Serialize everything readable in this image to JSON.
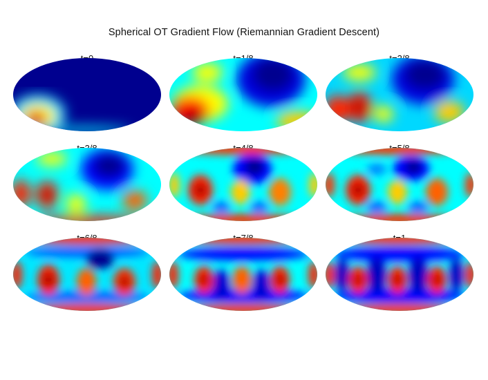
{
  "title": "Spherical OT Gradient Flow (Riemannian Gradient Descent)",
  "panels": [
    {
      "label": "t=0"
    },
    {
      "label": "t=1/8"
    },
    {
      "label": "t=2/8"
    },
    {
      "label": "t=3/8"
    },
    {
      "label": "t=4/8"
    },
    {
      "label": "t=5/8"
    },
    {
      "label": "t=6/8"
    },
    {
      "label": "t=7/8"
    },
    {
      "label": "t=1"
    }
  ],
  "colormap": [
    "#00008f",
    "#0000ff",
    "#00ffff",
    "#ffff00",
    "#ff0000",
    "#800000"
  ],
  "projection": "Mollweide (elliptical)"
}
